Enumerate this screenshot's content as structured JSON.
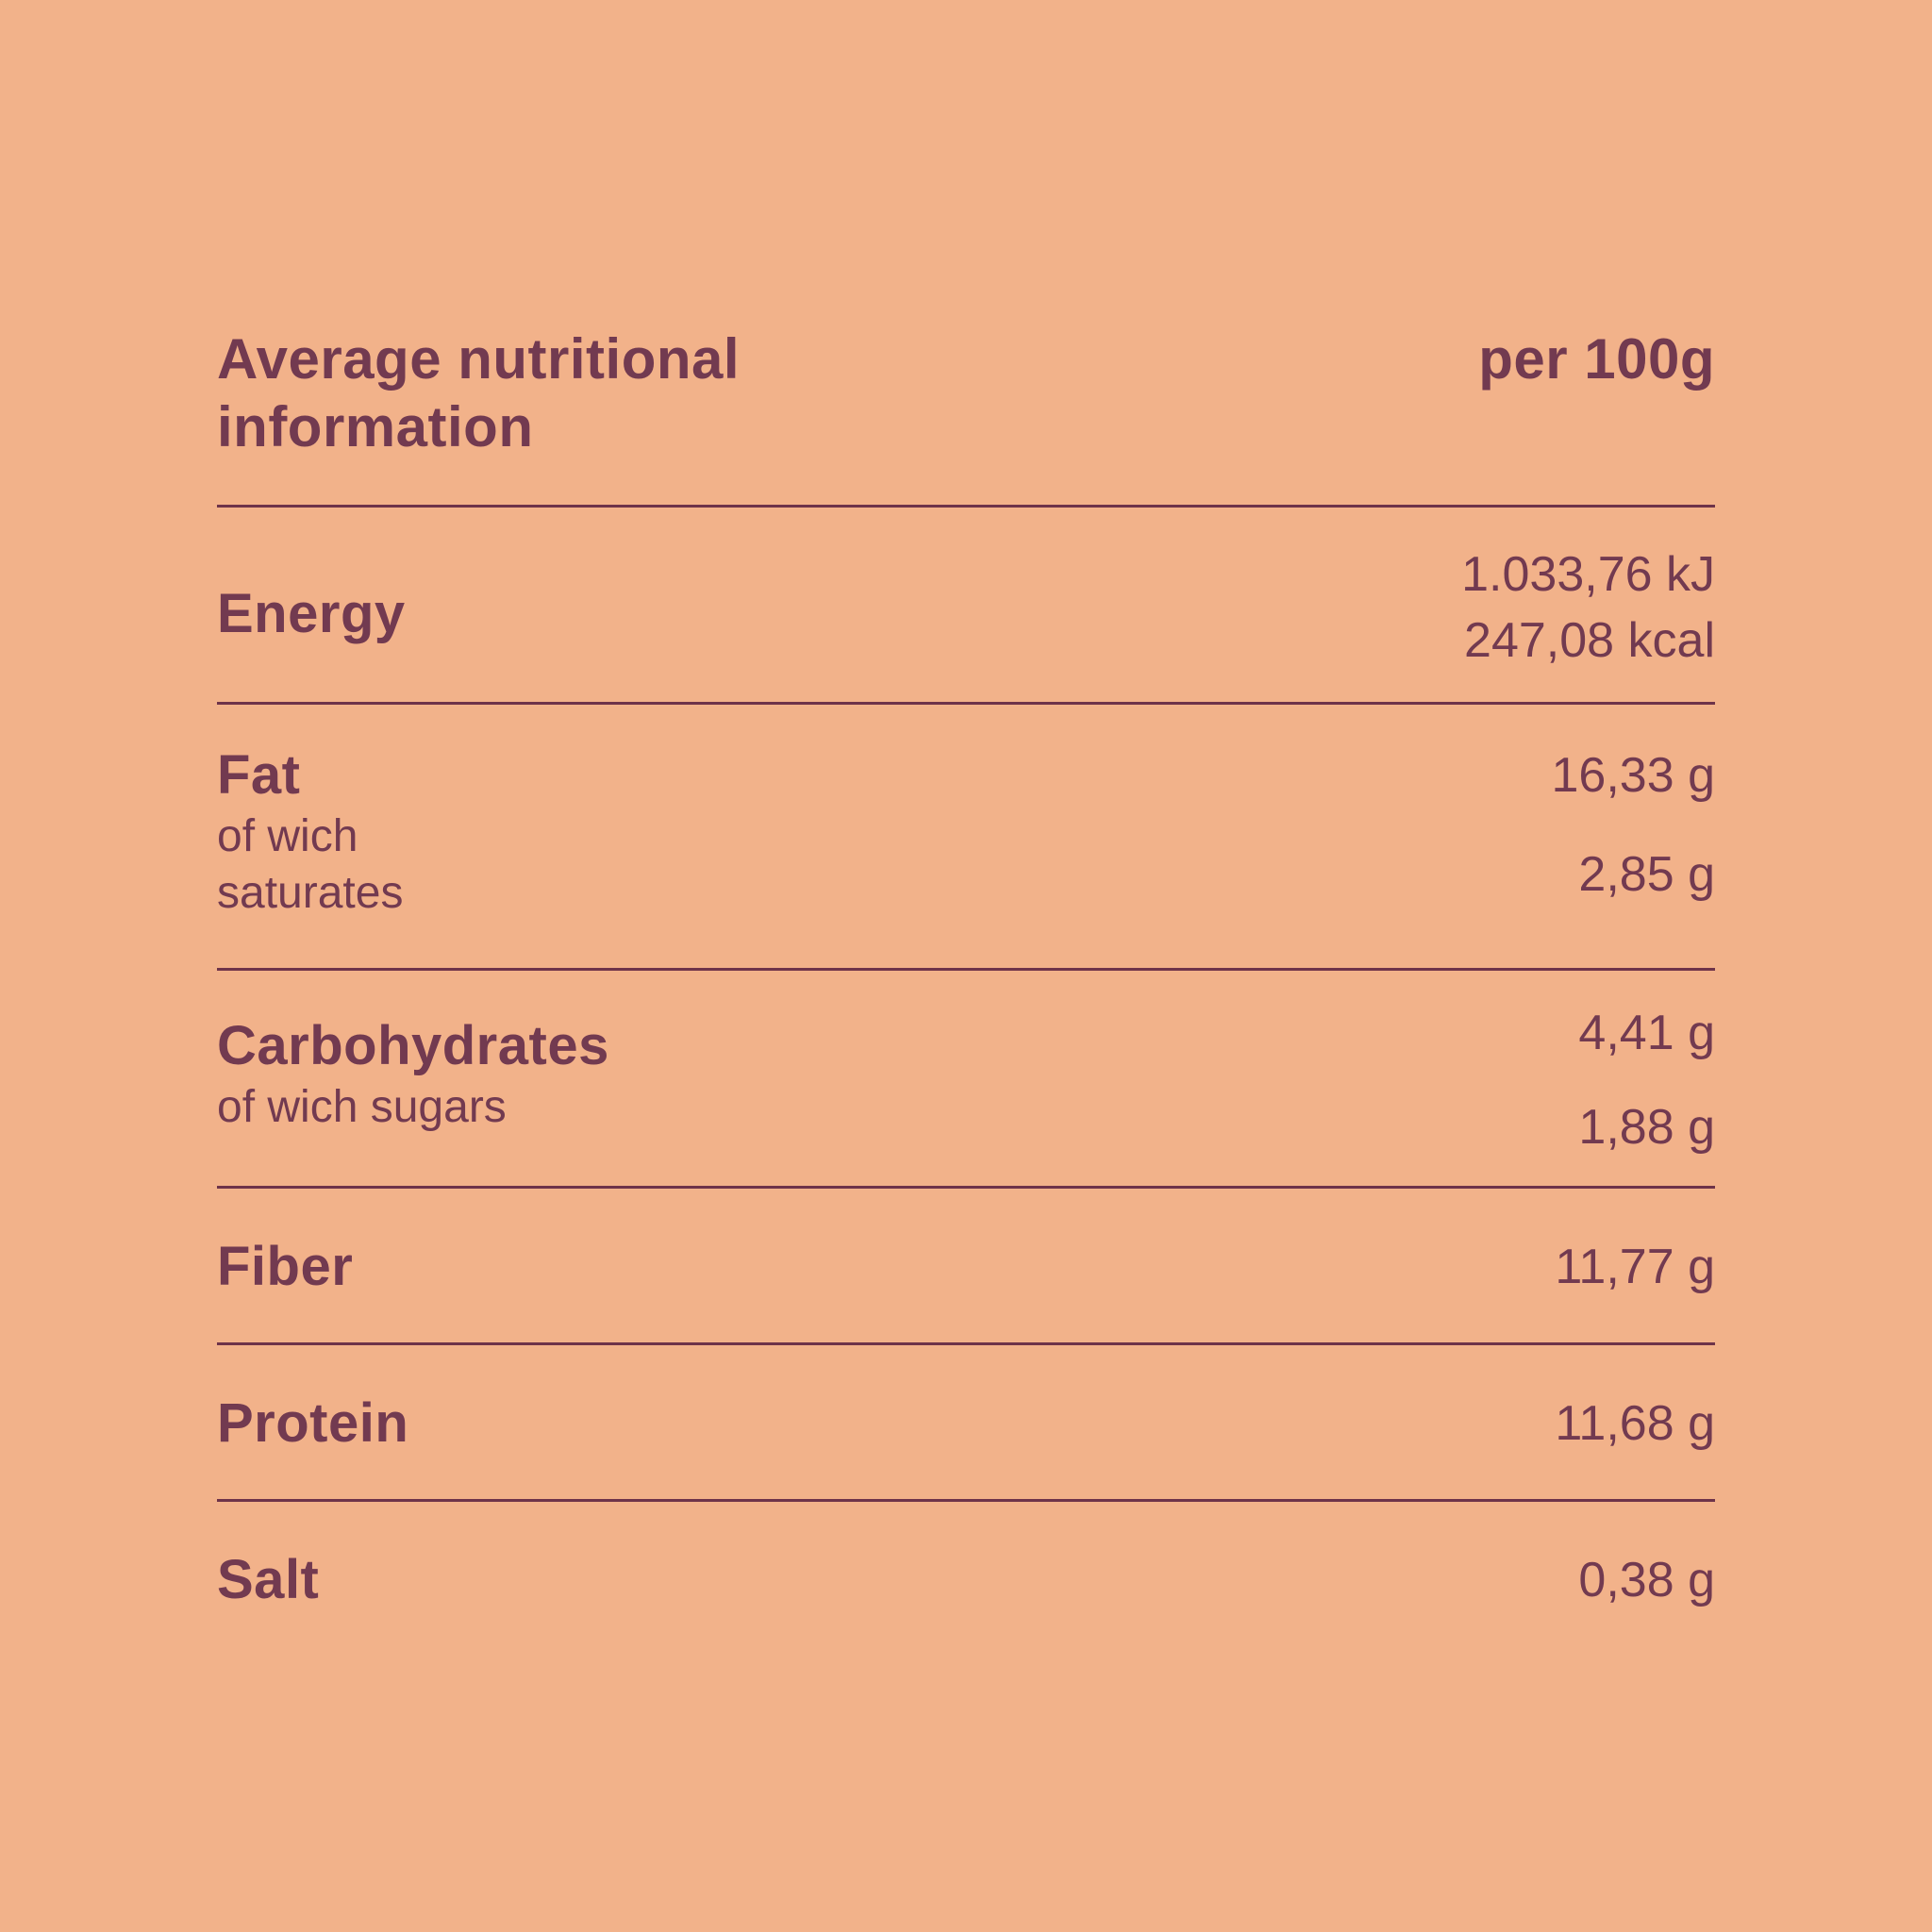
{
  "theme": {
    "background": "#F2B28A",
    "text_color": "#723A50",
    "rule_color": "#6E3349"
  },
  "header": {
    "title": "Average nutritional information",
    "title_line1": "Average nutritional",
    "title_line2": "information",
    "unit_label": "per 100g"
  },
  "rows": [
    {
      "label": "Energy",
      "values": [
        "1.033,76 kJ",
        "247,08 kcal"
      ]
    },
    {
      "label": "Fat",
      "sub_lines": [
        "of wich",
        "saturates"
      ],
      "value": "16,33 g",
      "sub_value": "2,85 g"
    },
    {
      "label": "Carbohydrates",
      "sub": "of wich sugars",
      "value": "4,41 g",
      "sub_value": "1,88 g"
    },
    {
      "label": "Fiber",
      "value": "11,77 g"
    },
    {
      "label": "Protein",
      "value": "11,68 g"
    },
    {
      "label": "Salt",
      "value": "0,38 g"
    }
  ]
}
